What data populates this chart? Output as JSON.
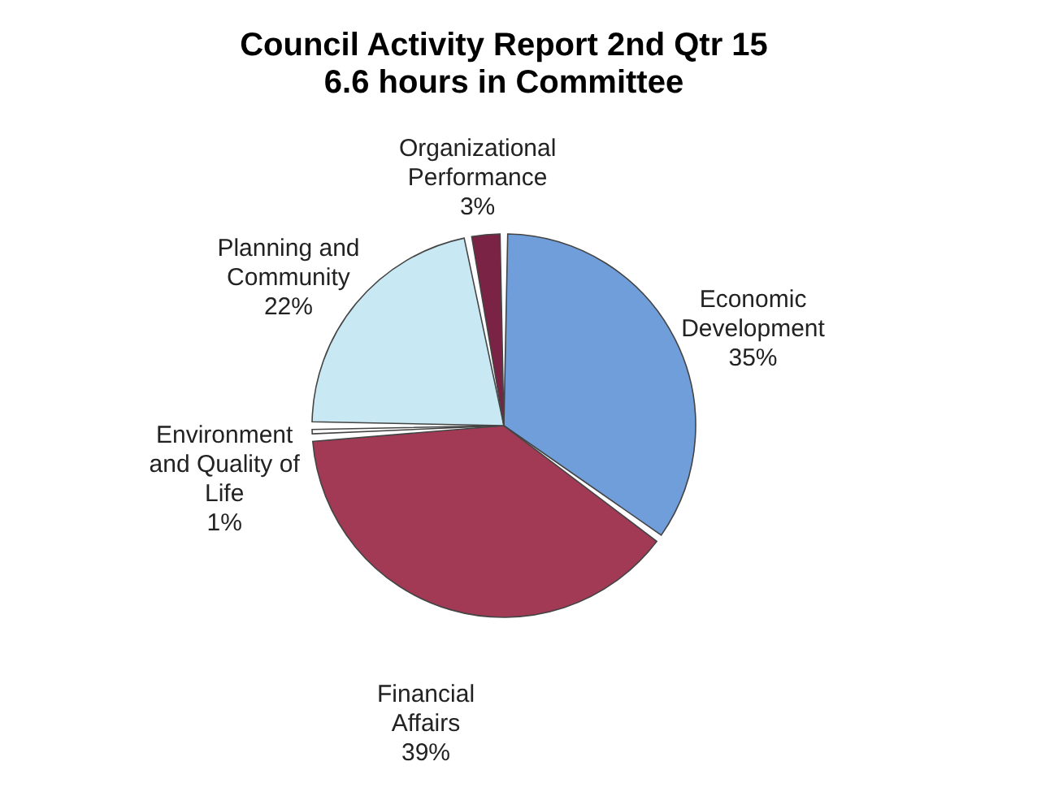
{
  "chart_data": {
    "type": "pie",
    "title": "Council Activity Report 2nd Qtr 15",
    "subtitle": "6.6 hours in Committee",
    "categories": [
      "Economic Development",
      "Financial Affairs",
      "Environment and Quality of Life",
      "Planning and Community",
      "Organizational Performance"
    ],
    "values": [
      35,
      39,
      1,
      22,
      3
    ],
    "value_labels": [
      "35%",
      "39%",
      "1%",
      "22%",
      "3%"
    ],
    "colors": [
      "#6f9edb",
      "#a33a55",
      "#ffffff",
      "#c8e9f3",
      "#7a2345"
    ],
    "legend": false
  }
}
